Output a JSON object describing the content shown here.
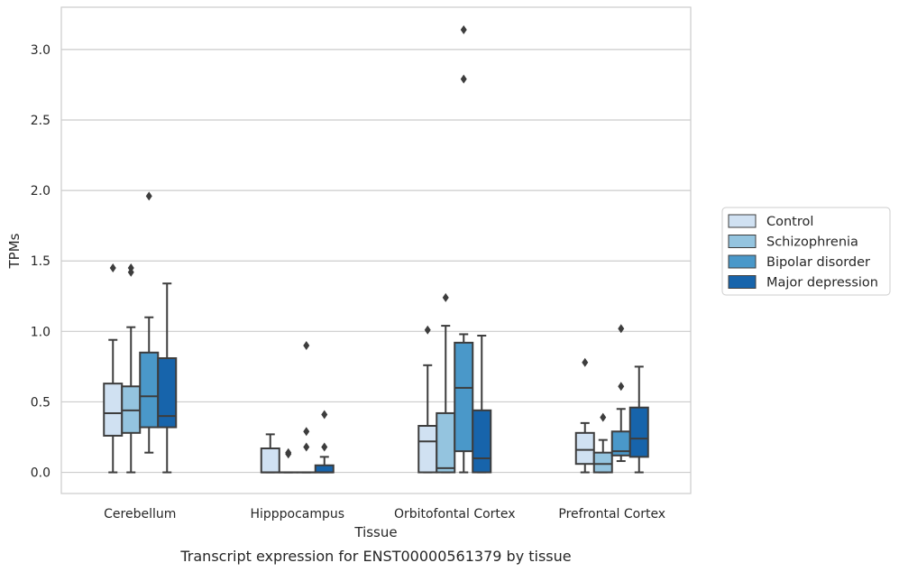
{
  "chart_data": {
    "type": "box",
    "title": "Transcript expression for ENST00000561379 by tissue",
    "xlabel": "Tissue",
    "ylabel": "TPMs",
    "ylim": [
      -0.15,
      3.3
    ],
    "yticks": [
      0.0,
      0.5,
      1.0,
      1.5,
      2.0,
      2.5,
      3.0
    ],
    "ytick_labels": [
      "0.0",
      "0.5",
      "1.0",
      "1.5",
      "2.0",
      "2.5",
      "3.0"
    ],
    "grid": true,
    "legend_position": "right",
    "categories": [
      "Cerebellum",
      "Hipppocampus",
      "Orbitofontal Cortex",
      "Prefrontal Cortex"
    ],
    "series": [
      {
        "name": "Control",
        "color": "#d0e1f2",
        "boxes": [
          {
            "whisker_low": 0.0,
            "q1": 0.26,
            "median": 0.42,
            "q3": 0.63,
            "whisker_high": 0.94,
            "outliers": [
              1.45
            ]
          },
          {
            "whisker_low": 0.0,
            "q1": 0.0,
            "median": 0.0,
            "q3": 0.17,
            "whisker_high": 0.27,
            "outliers": []
          },
          {
            "whisker_low": 0.0,
            "q1": 0.0,
            "median": 0.22,
            "q3": 0.33,
            "whisker_high": 0.76,
            "outliers": [
              1.01
            ]
          },
          {
            "whisker_low": 0.0,
            "q1": 0.06,
            "median": 0.16,
            "q3": 0.28,
            "whisker_high": 0.35,
            "outliers": [
              0.78
            ]
          }
        ]
      },
      {
        "name": "Schizophrenia",
        "color": "#94c4df",
        "boxes": [
          {
            "whisker_low": 0.0,
            "q1": 0.28,
            "median": 0.44,
            "q3": 0.61,
            "whisker_high": 1.03,
            "outliers": [
              1.45,
              1.42
            ]
          },
          {
            "whisker_low": 0.0,
            "q1": 0.0,
            "median": 0.0,
            "q3": 0.0,
            "whisker_high": 0.0,
            "outliers": [
              0.14,
              0.13
            ]
          },
          {
            "whisker_low": 0.0,
            "q1": 0.0,
            "median": 0.03,
            "q3": 0.42,
            "whisker_high": 1.04,
            "outliers": [
              1.24
            ]
          },
          {
            "whisker_low": 0.0,
            "q1": 0.0,
            "median": 0.06,
            "q3": 0.14,
            "whisker_high": 0.23,
            "outliers": [
              0.39
            ]
          }
        ]
      },
      {
        "name": "Bipolar disorder",
        "color": "#4a98c9",
        "boxes": [
          {
            "whisker_low": 0.14,
            "q1": 0.32,
            "median": 0.54,
            "q3": 0.85,
            "whisker_high": 1.1,
            "outliers": [
              1.96
            ]
          },
          {
            "whisker_low": 0.0,
            "q1": 0.0,
            "median": 0.0,
            "q3": 0.0,
            "whisker_high": 0.0,
            "outliers": [
              0.9,
              0.29,
              0.18
            ]
          },
          {
            "whisker_low": 0.0,
            "q1": 0.15,
            "median": 0.6,
            "q3": 0.92,
            "whisker_high": 0.98,
            "outliers": [
              3.14,
              2.79
            ]
          },
          {
            "whisker_low": 0.08,
            "q1": 0.12,
            "median": 0.15,
            "q3": 0.29,
            "whisker_high": 0.45,
            "outliers": [
              1.02,
              0.61
            ]
          }
        ]
      },
      {
        "name": "Major depression",
        "color": "#1764ab",
        "boxes": [
          {
            "whisker_low": 0.0,
            "q1": 0.32,
            "median": 0.4,
            "q3": 0.81,
            "whisker_high": 1.34,
            "outliers": []
          },
          {
            "whisker_low": 0.0,
            "q1": 0.0,
            "median": 0.0,
            "q3": 0.05,
            "whisker_high": 0.11,
            "outliers": [
              0.41,
              0.18
            ]
          },
          {
            "whisker_low": 0.0,
            "q1": 0.0,
            "median": 0.1,
            "q3": 0.44,
            "whisker_high": 0.97,
            "outliers": []
          },
          {
            "whisker_low": 0.0,
            "q1": 0.11,
            "median": 0.24,
            "q3": 0.46,
            "whisker_high": 0.75,
            "outliers": []
          }
        ]
      }
    ]
  }
}
